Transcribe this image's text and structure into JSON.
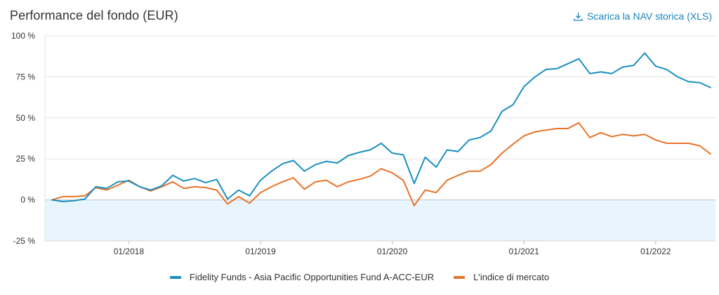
{
  "header": {
    "title": "Performance del fondo (EUR)",
    "download_label": "Scarica la NAV storica (XLS)"
  },
  "colors": {
    "fund": "#1a8fc0",
    "index": "#e8732a",
    "negative_fill": "#e8f5fc",
    "grid": "#e6e6e6"
  },
  "chart_data": {
    "type": "line",
    "title": "Performance del fondo (EUR)",
    "xlabel": "",
    "ylabel": "",
    "ylim": [
      -25,
      100
    ],
    "y_ticks": [
      100,
      75,
      50,
      25,
      0,
      -25
    ],
    "y_tick_labels": [
      "100 %",
      "75 %",
      "50 %",
      "25 %",
      "0 %",
      "-25 %"
    ],
    "x_range": [
      "2017-06",
      "2022-06"
    ],
    "x_ticks": [
      "2018-01",
      "2019-01",
      "2020-01",
      "2021-01",
      "2022-01"
    ],
    "x_tick_labels": [
      "01/2018",
      "01/2019",
      "01/2020",
      "01/2021",
      "01/2022"
    ],
    "grid": true,
    "legend_position": "bottom",
    "x": [
      "2017-06",
      "2017-07",
      "2017-08",
      "2017-09",
      "2017-10",
      "2017-11",
      "2017-12",
      "2018-01",
      "2018-02",
      "2018-03",
      "2018-04",
      "2018-05",
      "2018-06",
      "2018-07",
      "2018-08",
      "2018-09",
      "2018-10",
      "2018-11",
      "2018-12",
      "2019-01",
      "2019-02",
      "2019-03",
      "2019-04",
      "2019-05",
      "2019-06",
      "2019-07",
      "2019-08",
      "2019-09",
      "2019-10",
      "2019-11",
      "2019-12",
      "2020-01",
      "2020-02",
      "2020-03",
      "2020-04",
      "2020-05",
      "2020-06",
      "2020-07",
      "2020-08",
      "2020-09",
      "2020-10",
      "2020-11",
      "2020-12",
      "2021-01",
      "2021-02",
      "2021-03",
      "2021-04",
      "2021-05",
      "2021-06",
      "2021-07",
      "2021-08",
      "2021-09",
      "2021-10",
      "2021-11",
      "2021-12",
      "2022-01",
      "2022-02",
      "2022-03",
      "2022-04",
      "2022-05",
      "2022-06"
    ],
    "series": [
      {
        "name": "Fidelity Funds - Asia Pacific Opportunities Fund A-ACC-EUR",
        "color": "#1a8fc0",
        "values": [
          0,
          -1,
          -0.5,
          0.5,
          8,
          7,
          11,
          11.5,
          8,
          6,
          8.5,
          15,
          11.5,
          13,
          10.5,
          12.5,
          0.5,
          6,
          2.5,
          12,
          17.5,
          22,
          24,
          17.5,
          21.5,
          23.5,
          22.5,
          27,
          29,
          30.5,
          34.5,
          28.5,
          27.5,
          10,
          26,
          20,
          30.5,
          29.5,
          36.5,
          38,
          42,
          54,
          58,
          69,
          75,
          79.5,
          80,
          83,
          86,
          77,
          78,
          77,
          81,
          82,
          89.5,
          81.5,
          79.5,
          75,
          72,
          71.5,
          68.5
        ]
      },
      {
        "name": "L'indice di mercato",
        "color": "#e8732a",
        "values": [
          0,
          2,
          2,
          2.5,
          7.5,
          6,
          9,
          12,
          8,
          5.5,
          8,
          11,
          7,
          8,
          7.5,
          6,
          -2.5,
          2,
          -2,
          4.5,
          8,
          11,
          13.5,
          6.5,
          11,
          12,
          8,
          11,
          12.5,
          14.5,
          19,
          16.5,
          12,
          -3.5,
          6,
          4.5,
          12,
          15,
          17.5,
          17.5,
          21.5,
          28.5,
          34,
          39,
          41.5,
          42.5,
          43.5,
          43.5,
          47,
          38,
          41,
          38.5,
          40,
          39,
          40,
          36.5,
          34.5,
          34.5,
          34.5,
          33,
          28
        ]
      }
    ]
  }
}
